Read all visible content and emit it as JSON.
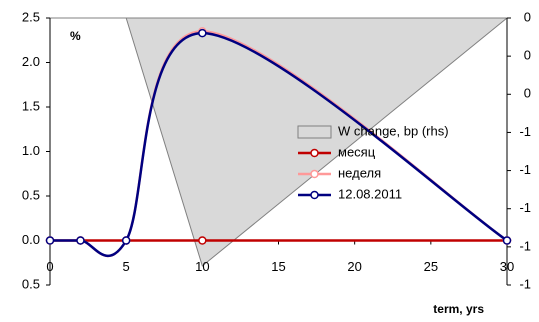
{
  "chart_data": {
    "type": "line",
    "y_label": "%",
    "x_label": "term, yrs",
    "x": [
      0,
      2,
      5,
      10,
      30
    ],
    "series": [
      {
        "name": "W change, bp (rhs)",
        "type": "area",
        "axis": "y2",
        "color": "#d9d9d9",
        "values": [
          0,
          0,
          0,
          -1.3,
          0
        ]
      },
      {
        "name": "месяц",
        "color": "#c00000",
        "values": [
          0,
          0,
          0,
          0,
          0
        ]
      },
      {
        "name": "неделя",
        "color": "#ff9999",
        "values": [
          0,
          0,
          0,
          2.35,
          0
        ]
      },
      {
        "name": "12.08.2011",
        "color": "#000080",
        "values": [
          0,
          0,
          0,
          2.33,
          0
        ]
      }
    ],
    "xlim": [
      0,
      30
    ],
    "xticks": [
      0,
      5,
      10,
      15,
      20,
      25,
      30
    ],
    "ylim": [
      -0.5,
      2.5
    ],
    "yticks": [
      {
        "value": -0.5,
        "label": "0.5"
      },
      {
        "value": 0,
        "label": "0.0"
      },
      {
        "value": 0.5,
        "label": "0.5"
      },
      {
        "value": 1,
        "label": "1.0"
      },
      {
        "value": 1.5,
        "label": "1.5"
      },
      {
        "value": 2,
        "label": "2.0"
      },
      {
        "value": 2.5,
        "label": "2.5"
      }
    ],
    "negative_tick_color": "#ff0000",
    "y2lim": [
      -1.4,
      0
    ],
    "y2ticks": [
      {
        "value": -1.4,
        "label": "-1"
      },
      {
        "value": -1.2,
        "label": "-1"
      },
      {
        "value": -1,
        "label": "-1"
      },
      {
        "value": -0.8,
        "label": "-1"
      },
      {
        "value": -0.6,
        "label": "-1"
      },
      {
        "value": -0.4,
        "label": "0"
      },
      {
        "value": -0.2,
        "label": "0"
      },
      0
    ],
    "smooth": true,
    "grid": false
  }
}
